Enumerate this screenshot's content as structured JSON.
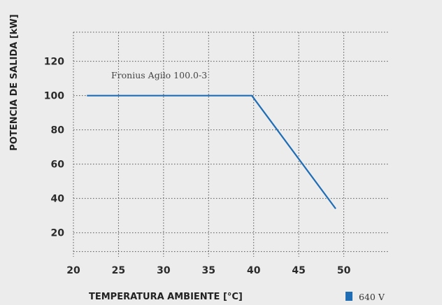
{
  "chart_data": {
    "type": "line",
    "title": "",
    "xlabel": "TEMPERATURA AMBIENTE [°C]",
    "ylabel": "POTENCIA DE SALIDA [kW]",
    "xlim": [
      20,
      55
    ],
    "ylim": [
      6,
      137
    ],
    "x_ticks": [
      20,
      25,
      30,
      35,
      40,
      45,
      50
    ],
    "y_ticks": [
      20,
      40,
      60,
      80,
      100,
      120
    ],
    "x_grid": [
      20,
      25,
      30,
      35,
      40,
      45,
      50
    ],
    "y_grid": [
      9,
      20,
      40,
      60,
      80,
      100,
      120,
      137
    ],
    "grid": true,
    "annotation": "Fronius Agilo 100.0-3",
    "legend_position": "bottom-right",
    "series": [
      {
        "name": "640 V",
        "color": "#1f6db5",
        "x": [
          21.5,
          39.8,
          49.1
        ],
        "y": [
          100,
          100,
          34
        ]
      }
    ]
  }
}
